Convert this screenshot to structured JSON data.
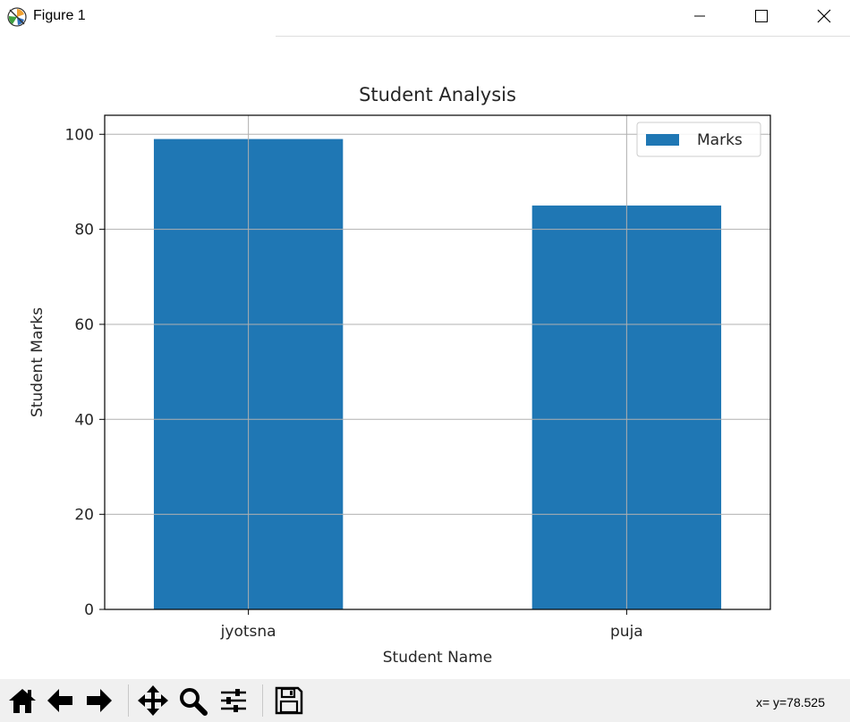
{
  "window": {
    "title": "Figure 1",
    "controls": [
      "minimize-icon",
      "maximize-icon",
      "close-icon"
    ]
  },
  "toolbar": {
    "buttons": [
      {
        "name": "home-icon"
      },
      {
        "name": "back-arrow-icon"
      },
      {
        "name": "forward-arrow-icon"
      },
      {
        "name": "pan-icon"
      },
      {
        "name": "zoom-icon"
      },
      {
        "name": "configure-subplots-icon"
      },
      {
        "name": "save-icon"
      }
    ],
    "coordinates": "x= y=78.525"
  },
  "chart_data": {
    "type": "bar",
    "title": "Student Analysis",
    "xlabel": "Student Name",
    "ylabel": "Student Marks",
    "categories": [
      "jyotsna",
      "puja"
    ],
    "series": [
      {
        "name": "Marks",
        "values": [
          99,
          85
        ],
        "color": "#1f77b4"
      }
    ],
    "ylim": [
      0,
      104
    ],
    "yticks": [
      0,
      20,
      40,
      60,
      80,
      100
    ],
    "grid": true,
    "legend": "top-right"
  }
}
